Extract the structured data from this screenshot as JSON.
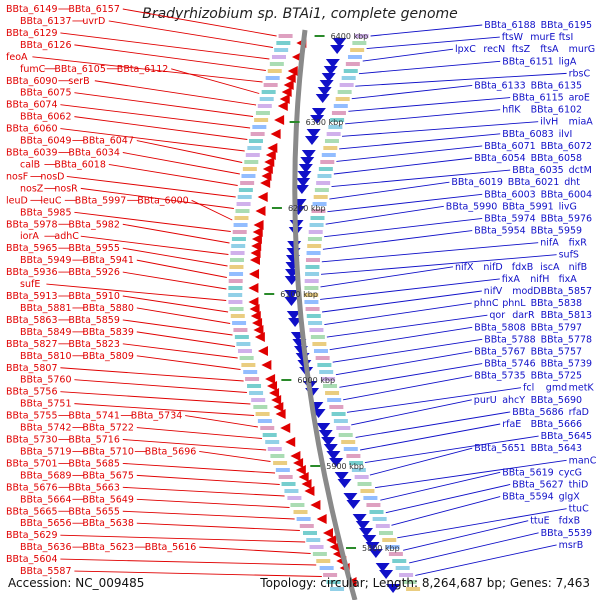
{
  "title": "Bradyrhizobium sp. BTAi1, complete genome",
  "footer": {
    "accession_label": "Accession:",
    "accession": "NC_009485",
    "topology_label": "Topology:",
    "topology": "circular;",
    "length_label": "Length:",
    "length": "8,264,687 bp;",
    "genes_label": "Genes:",
    "genes": "7,463"
  },
  "colors": {
    "left_strand": "#e00000",
    "right_strand": "#1010c8",
    "backbone": "#888888",
    "tick": "#2a8a2a"
  },
  "kbp_ticks": [
    "6400 kbp",
    "6300 kbp",
    "6200 kbp",
    "6100 kbp",
    "6000 kbp",
    "5900 kbp",
    "5800 kbp"
  ],
  "left_labels": [
    [
      "BBta_6149",
      "BBta_6157"
    ],
    [
      "BBta_6137",
      "uvrD"
    ],
    [
      "BBta_6129"
    ],
    [
      "BBta_6126"
    ],
    [
      "feoA"
    ],
    [
      "fumC",
      "BBta_6105",
      "BBta_6112"
    ],
    [
      "BBta_6090",
      "serB"
    ],
    [
      "BBta_6075"
    ],
    [
      "BBta_6074"
    ],
    [
      "BBta_6062"
    ],
    [
      "BBta_6060"
    ],
    [
      "BBta_6049",
      "BBta_6047"
    ],
    [
      "BBta_6039",
      "BBta_6034"
    ],
    [
      "calB",
      "BBta_6018"
    ],
    [
      "nosF",
      "nosD"
    ],
    [
      "nosZ",
      "nosR"
    ],
    [
      "leuD",
      "leuC",
      "BBta_5997",
      "BBta_6000"
    ],
    [
      "BBta_5985"
    ],
    [
      "BBta_5978",
      "BBta_5982"
    ],
    [
      "iorA",
      "adhC"
    ],
    [
      "BBta_5965",
      "BBta_5955"
    ],
    [
      "BBta_5949",
      "BBta_5941"
    ],
    [
      "BBta_5936",
      "BBta_5926"
    ],
    [
      "sufE"
    ],
    [
      "BBta_5913",
      "BBta_5910"
    ],
    [
      "BBta_5881",
      "BBta_5880"
    ],
    [
      "BBta_5863",
      "BBta_5859"
    ],
    [
      "BBta_5849",
      "BBta_5839"
    ],
    [
      "BBta_5827",
      "BBta_5823"
    ],
    [
      "BBta_5810",
      "BBta_5809"
    ],
    [
      "BBta_5807"
    ],
    [
      "BBta_5760"
    ],
    [
      "BBta_5756"
    ],
    [
      "BBta_5751"
    ],
    [
      "BBta_5755",
      "BBta_5741",
      "BBta_5734"
    ],
    [
      "BBta_5742",
      "BBta_5722"
    ],
    [
      "BBta_5730",
      "BBta_5716"
    ],
    [
      "BBta_5719",
      "BBta_5710",
      "BBta_5696"
    ],
    [
      "BBta_5701",
      "BBta_5685"
    ],
    [
      "BBta_5689",
      "BBta_5675"
    ],
    [
      "BBta_5676",
      "BBta_5663"
    ],
    [
      "BBta_5664",
      "BBta_5649"
    ],
    [
      "BBta_5665",
      "BBta_5655"
    ],
    [
      "BBta_5656",
      "BBta_5638"
    ],
    [
      "BBta_5629"
    ],
    [
      "BBta_5636",
      "BBta_5623",
      "BBta_5616"
    ],
    [
      "BBta_5604"
    ],
    [
      "BBta_5587"
    ]
  ],
  "right_labels": [
    [
      "BBta_6188",
      "BBta_6195"
    ],
    [
      "ftsW",
      "murE",
      "ftsI"
    ],
    [
      "lpxC",
      "recN",
      "ftsZ",
      "ftsA",
      "murG"
    ],
    [
      "BBta_6151",
      "ligA"
    ],
    [
      "rbsC"
    ],
    [
      "BBta_6133",
      "BBta_6135"
    ],
    [
      "BBta_6115",
      "aroE"
    ],
    [
      "hflK",
      "BBta_6102"
    ],
    [
      "ilvH",
      "miaA"
    ],
    [
      "BBta_6083",
      "ilvI"
    ],
    [
      "BBta_6071",
      "BBta_6072"
    ],
    [
      "BBta_6054",
      "BBta_6058"
    ],
    [
      "BBta_6035",
      "dctM"
    ],
    [
      "BBta_6019",
      "BBta_6021",
      "dht"
    ],
    [
      "BBta_6003",
      "BBta_6004"
    ],
    [
      "BBta_5990",
      "BBta_5991",
      "livG"
    ],
    [
      "BBta_5974",
      "BBta_5976"
    ],
    [
      "BBta_5954",
      "BBta_5959"
    ],
    [
      "nifA",
      "fixR"
    ],
    [
      "sufS"
    ],
    [
      "nifX",
      "nifD",
      "fdxB",
      "iscA",
      "nifB"
    ],
    [
      "fixA",
      "nifH",
      "fixA"
    ],
    [
      "nifV",
      "modD",
      "BBta_5857"
    ],
    [
      "phnC",
      "phnL",
      "BBta_5838"
    ],
    [
      "qor",
      "darR",
      "BBta_5813"
    ],
    [
      "BBta_5808",
      "BBta_5797"
    ],
    [
      "BBta_5788",
      "BBta_5778"
    ],
    [
      "BBta_5767",
      "BBta_5757"
    ],
    [
      "BBta_5746",
      "BBta_5739"
    ],
    [
      "BBta_5735",
      "BBta_5725"
    ],
    [
      "fcl",
      "gmd",
      "metK"
    ],
    [
      "purU",
      "ahcY",
      "BBta_5690"
    ],
    [
      "BBta_5686",
      "rfaD"
    ],
    [
      "rfaE",
      "BBta_5666"
    ],
    [
      "BBta_5645"
    ],
    [
      "BBta_5651",
      "BBta_5643"
    ],
    [
      "manC"
    ],
    [
      "BBta_5619",
      "cycG"
    ],
    [
      "BBta_5627",
      "thiD"
    ],
    [
      "BBta_5594",
      "glgX"
    ],
    [
      "ttuC"
    ],
    [
      "ttuE",
      "fdxB"
    ],
    [
      "BBta_5539"
    ],
    [
      "msrB"
    ]
  ]
}
